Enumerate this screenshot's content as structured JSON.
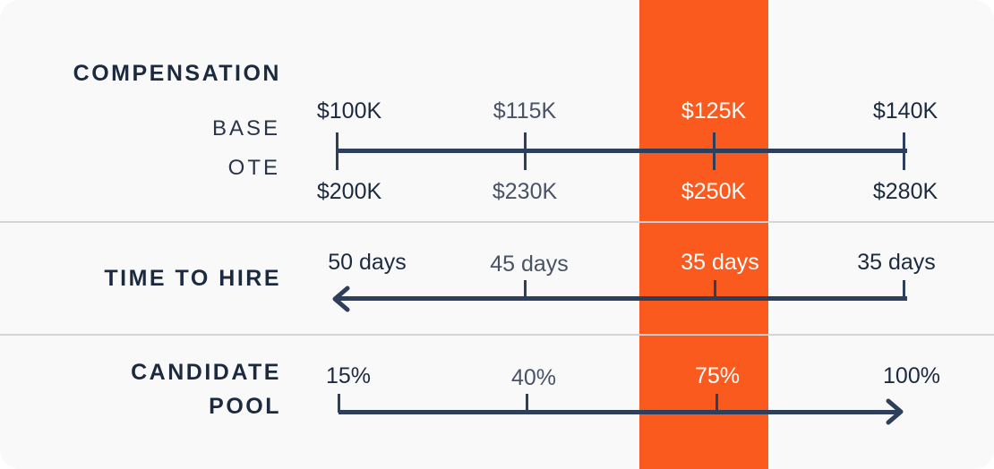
{
  "colors": {
    "highlight": "#fb5a1f",
    "navy": "#1c2a40",
    "axis": "#2d3f5b",
    "background": "#f9f9f9"
  },
  "compensation": {
    "title": "COMPENSATION",
    "base_label": "BASE",
    "ote_label": "OTE",
    "base_values": [
      "$100K",
      "$115K",
      "$125K",
      "$140K"
    ],
    "ote_values": [
      "$200K",
      "$230K",
      "$250K",
      "$280K"
    ]
  },
  "time_to_hire": {
    "title": "TIME TO HIRE",
    "values": [
      "50 days",
      "45 days",
      "35 days",
      "35 days"
    ],
    "arrow_direction": "left"
  },
  "candidate_pool": {
    "title_line1": "CANDIDATE",
    "title_line2": "POOL",
    "values": [
      "15%",
      "40%",
      "75%",
      "100%"
    ],
    "arrow_direction": "right"
  },
  "highlighted_column_index": 2
}
